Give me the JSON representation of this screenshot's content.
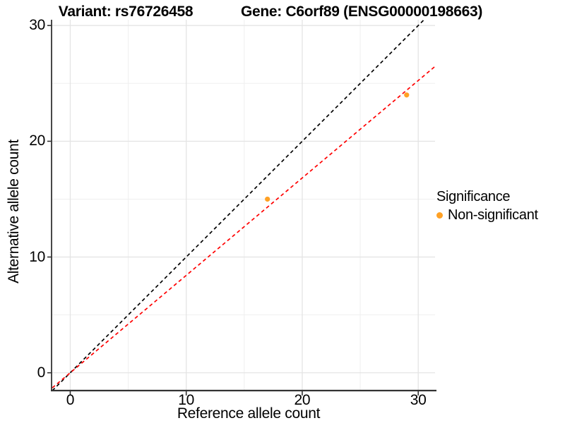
{
  "chart_data": {
    "type": "scatter",
    "title_left": "Variant: rs76726458",
    "title_right": "Gene: C6orf89 (ENSG00000198663)",
    "xlabel": "Reference allele count",
    "ylabel": "Alternative allele count",
    "xlim": [
      -1.55,
      31.45
    ],
    "ylim": [
      -1.6,
      30.5
    ],
    "x_ticks": [
      0,
      10,
      20,
      30
    ],
    "y_ticks": [
      0,
      10,
      20,
      30
    ],
    "x_minor_ticks": [
      5,
      15,
      25
    ],
    "y_minor_ticks": [
      5,
      15,
      25
    ],
    "points": [
      {
        "x": 17,
        "y": 15
      },
      {
        "x": 29,
        "y": 24
      }
    ],
    "point_color": "#FFA125",
    "point_radius": 3.6,
    "lines": [
      {
        "name": "identity-line",
        "slope": 1.0,
        "intercept": 0,
        "color": "#000000",
        "dash": "5,4"
      },
      {
        "name": "fit-line",
        "slope": 0.8416,
        "intercept": 0,
        "color": "#FF0000",
        "dash": "5,4"
      }
    ],
    "grid_major_color": "#E4E4E4",
    "grid_minor_color": "#EFEFEF",
    "axis_color": "#333333",
    "legend": {
      "title": "Significance",
      "items": [
        {
          "label": "Non-significant",
          "color": "#FFA125"
        }
      ]
    }
  }
}
